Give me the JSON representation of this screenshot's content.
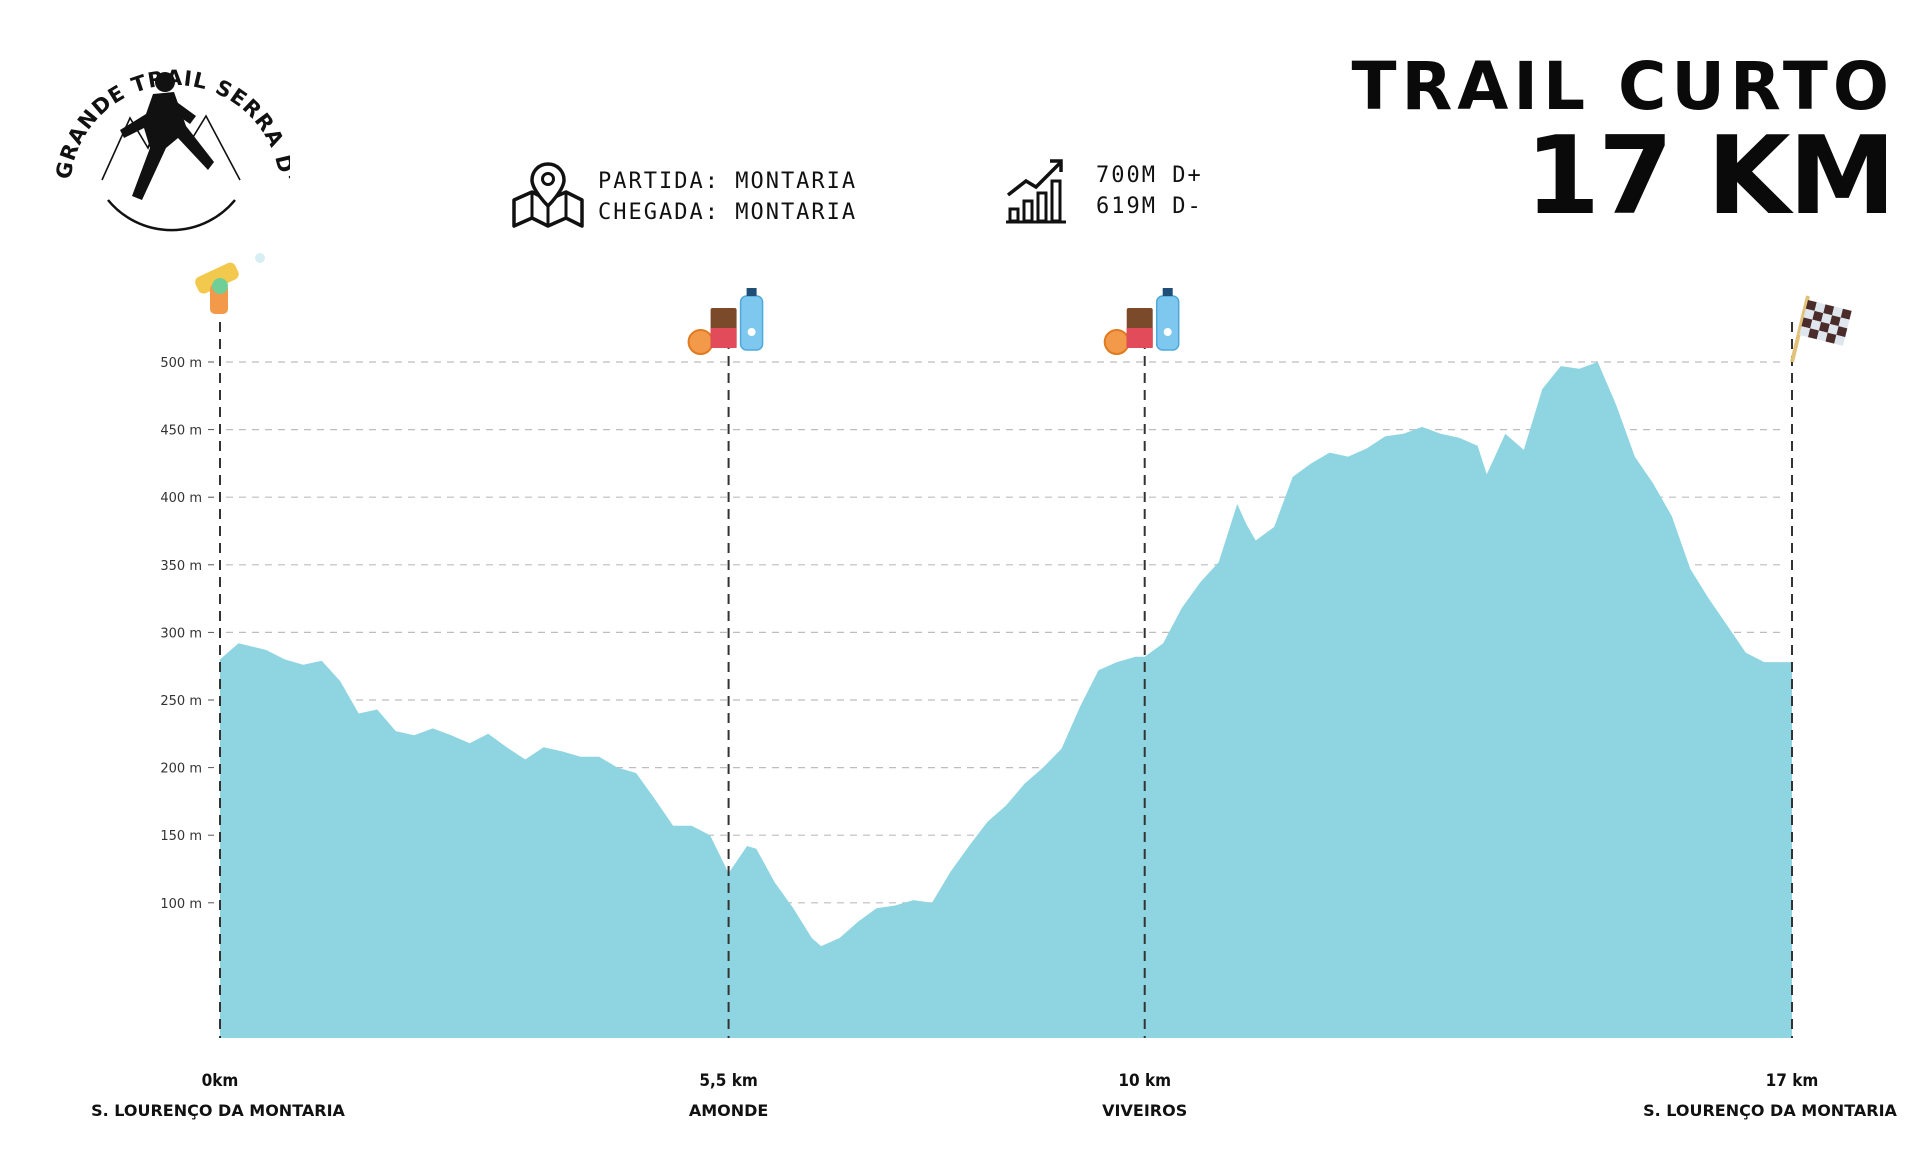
{
  "header": {
    "title_line1": "TRAIL CURTO",
    "title_line2": "17 KM"
  },
  "logo": {
    "arc_text": "GRANDE TRAIL SERRA D'ARGA",
    "icon": "trail-runner-mountains-logo"
  },
  "route": {
    "start_label": "PARTIDA: MONTARIA",
    "finish_label": "CHEGADA: MONTARIA",
    "icon": "map-pin-icon"
  },
  "elevation_summary": {
    "gain_label": "700M D+",
    "loss_label": "619M D-",
    "icon": "growth-chart-icon"
  },
  "colors": {
    "profile_fill": "#8fd5e1",
    "grid": "#bdbdbd",
    "marker_line": "#333333"
  },
  "chart_data": {
    "type": "area",
    "x_unit": "km",
    "y_unit": "m",
    "xlim": [
      0,
      17
    ],
    "ylim": [
      0,
      500
    ],
    "y_ticks": [
      {
        "value": 100,
        "label": "100 m"
      },
      {
        "value": 150,
        "label": "150 m"
      },
      {
        "value": 200,
        "label": "200 m"
      },
      {
        "value": 250,
        "label": "250 m"
      },
      {
        "value": 300,
        "label": "300 m"
      },
      {
        "value": 350,
        "label": "350 m"
      },
      {
        "value": 400,
        "label": "400 m"
      },
      {
        "value": 450,
        "label": "450 m"
      },
      {
        "value": 500,
        "label": "500 m"
      }
    ],
    "grid": true,
    "markers": [
      {
        "km": 0,
        "km_label": "0km",
        "place": "S. LOURENÇO DA MONTARIA",
        "icon": "starting-pistol-icon"
      },
      {
        "km": 5.5,
        "km_label": "5,5 km",
        "place": "AMONDE",
        "icon": "food-and-water-icon"
      },
      {
        "km": 10,
        "km_label": "10 km",
        "place": "VIVEIROS",
        "icon": "food-and-water-icon"
      },
      {
        "km": 17,
        "km_label": "17 km",
        "place": "S. LOURENÇO DA MONTARIA",
        "icon": "checkered-flag-icon"
      }
    ],
    "profile": [
      [
        0,
        280
      ],
      [
        0.2,
        292
      ],
      [
        0.5,
        287
      ],
      [
        0.7,
        280
      ],
      [
        0.9,
        276
      ],
      [
        1.1,
        279
      ],
      [
        1.3,
        264
      ],
      [
        1.5,
        240
      ],
      [
        1.7,
        243
      ],
      [
        1.9,
        227
      ],
      [
        2.1,
        224
      ],
      [
        2.3,
        229
      ],
      [
        2.5,
        224
      ],
      [
        2.7,
        218
      ],
      [
        2.9,
        225
      ],
      [
        3.1,
        215
      ],
      [
        3.3,
        206
      ],
      [
        3.5,
        215
      ],
      [
        3.7,
        212
      ],
      [
        3.9,
        208
      ],
      [
        4.1,
        208
      ],
      [
        4.3,
        200
      ],
      [
        4.5,
        196
      ],
      [
        4.7,
        177
      ],
      [
        4.9,
        157
      ],
      [
        5.1,
        157
      ],
      [
        5.3,
        150
      ],
      [
        5.5,
        122
      ],
      [
        5.7,
        142
      ],
      [
        5.8,
        140
      ],
      [
        6.0,
        115
      ],
      [
        6.2,
        96
      ],
      [
        6.4,
        74
      ],
      [
        6.5,
        68
      ],
      [
        6.7,
        74
      ],
      [
        6.9,
        86
      ],
      [
        7.1,
        96
      ],
      [
        7.3,
        98
      ],
      [
        7.5,
        102
      ],
      [
        7.7,
        100
      ],
      [
        7.9,
        123
      ],
      [
        8.1,
        142
      ],
      [
        8.3,
        160
      ],
      [
        8.5,
        172
      ],
      [
        8.7,
        188
      ],
      [
        8.9,
        200
      ],
      [
        9.1,
        214
      ],
      [
        9.3,
        245
      ],
      [
        9.5,
        272
      ],
      [
        9.7,
        278
      ],
      [
        9.9,
        282
      ],
      [
        10.0,
        282
      ],
      [
        10.2,
        292
      ],
      [
        10.4,
        318
      ],
      [
        10.6,
        337
      ],
      [
        10.8,
        352
      ],
      [
        11.0,
        395
      ],
      [
        11.1,
        380
      ],
      [
        11.2,
        368
      ],
      [
        11.4,
        378
      ],
      [
        11.6,
        415
      ],
      [
        11.8,
        425
      ],
      [
        12.0,
        433
      ],
      [
        12.2,
        430
      ],
      [
        12.4,
        436
      ],
      [
        12.6,
        445
      ],
      [
        12.8,
        447
      ],
      [
        13.0,
        452
      ],
      [
        13.2,
        447
      ],
      [
        13.4,
        444
      ],
      [
        13.6,
        438
      ],
      [
        13.7,
        417
      ],
      [
        13.9,
        447
      ],
      [
        14.1,
        435
      ],
      [
        14.3,
        480
      ],
      [
        14.5,
        497
      ],
      [
        14.7,
        495
      ],
      [
        14.9,
        500
      ],
      [
        15.1,
        468
      ],
      [
        15.3,
        430
      ],
      [
        15.5,
        410
      ],
      [
        15.7,
        386
      ],
      [
        15.9,
        347
      ],
      [
        16.1,
        325
      ],
      [
        16.3,
        305
      ],
      [
        16.5,
        285
      ],
      [
        16.7,
        278
      ],
      [
        17,
        278
      ]
    ]
  }
}
